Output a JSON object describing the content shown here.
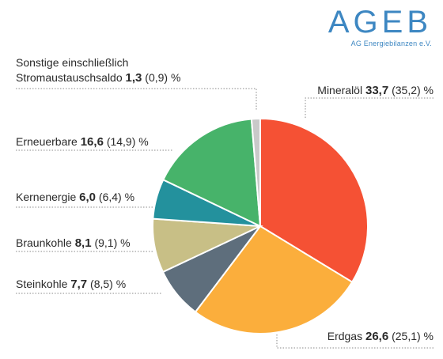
{
  "logo": {
    "text": "AGEB",
    "subtitle": "AG Energiebilanzen e.V."
  },
  "colors": {
    "mineraloel": "#f55134",
    "erdgas": "#fbae3c",
    "steinkohle": "#5e6e7c",
    "braunkohle": "#c8bf86",
    "kernenergie": "#23919d",
    "erneuerbare": "#47b36a",
    "sonstige": "#c9c9c9",
    "leader": "#8a8a8a"
  },
  "chart_data": {
    "type": "pie",
    "unit": "%",
    "slices": [
      {
        "key": "mineraloel",
        "label": "Mineralöl",
        "value": 33.7,
        "value_text": "33,7",
        "previous": 35.2,
        "previous_text": "(35,2)"
      },
      {
        "key": "erdgas",
        "label": "Erdgas",
        "value": 26.6,
        "value_text": "26,6",
        "previous": 25.1,
        "previous_text": "(25,1)"
      },
      {
        "key": "steinkohle",
        "label": "Steinkohle",
        "value": 7.7,
        "value_text": "7,7",
        "previous": 8.5,
        "previous_text": "(8,5)"
      },
      {
        "key": "braunkohle",
        "label": "Braunkohle",
        "value": 8.1,
        "value_text": "8,1",
        "previous": 9.1,
        "previous_text": "(9,1)"
      },
      {
        "key": "kernenergie",
        "label": "Kernenergie",
        "value": 6.0,
        "value_text": "6,0",
        "previous": 6.4,
        "previous_text": "(6,4)"
      },
      {
        "key": "erneuerbare",
        "label": "Erneuerbare",
        "value": 16.6,
        "value_text": "16,6",
        "previous": 14.9,
        "previous_text": "(14,9)"
      },
      {
        "key": "sonstige",
        "label": "Sonstige einschließlich",
        "label_line2": "Stromaustauschsaldo",
        "value": 1.3,
        "value_text": "1,3",
        "previous": 0.9,
        "previous_text": "(0,9)"
      }
    ]
  }
}
